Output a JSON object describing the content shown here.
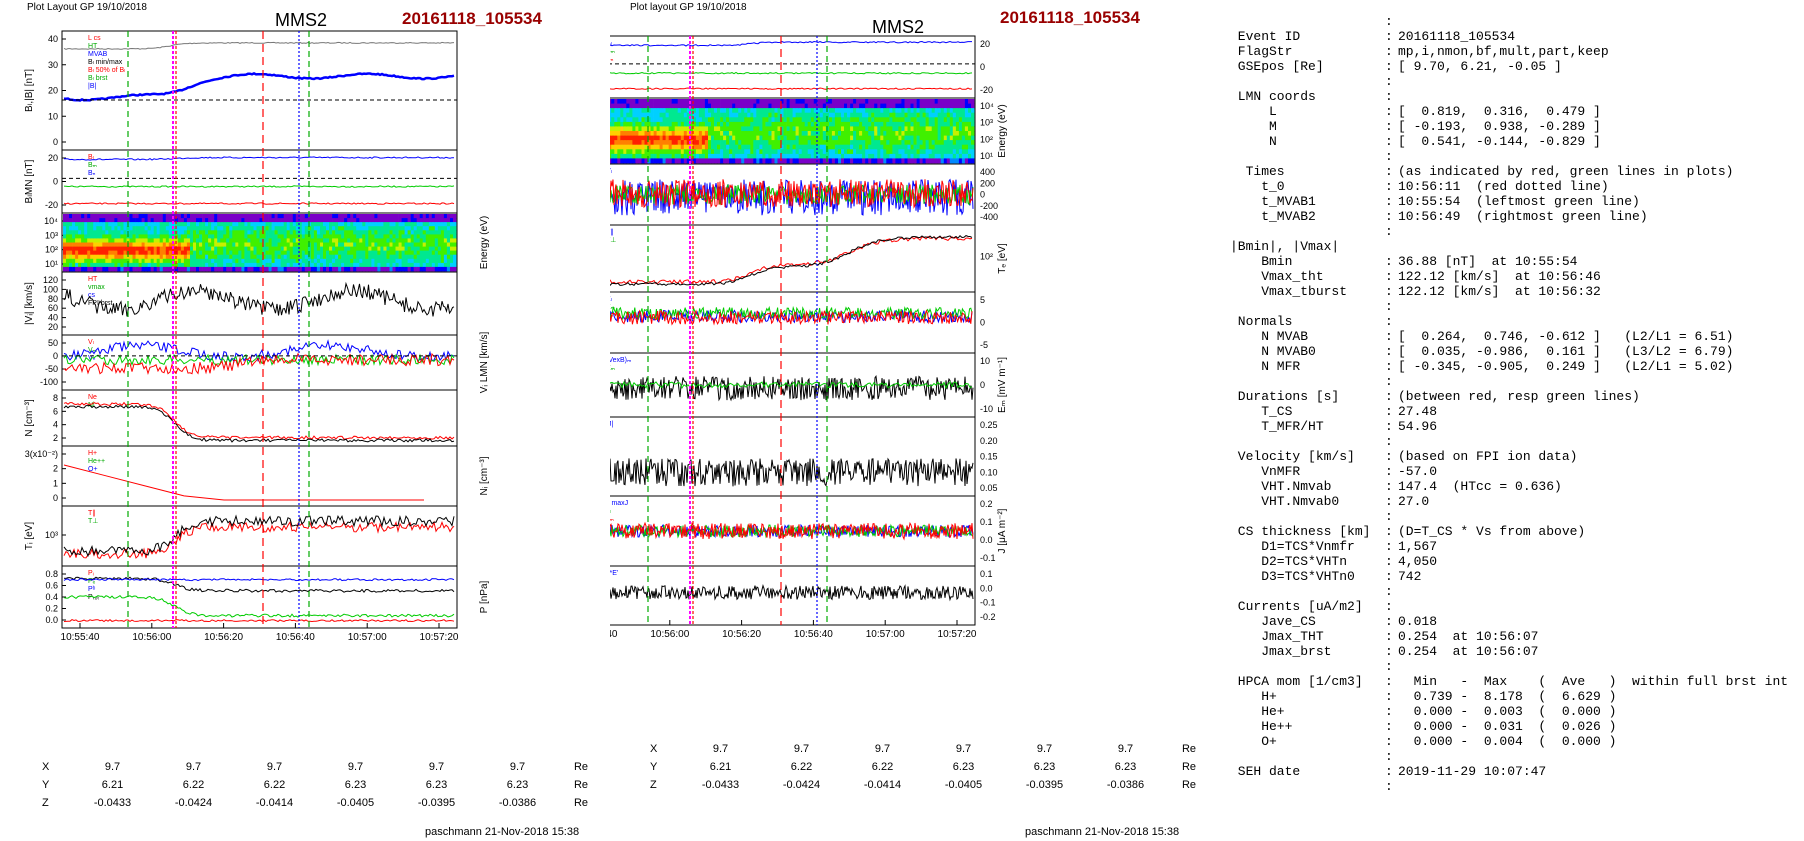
{
  "left_plot": {
    "header": "Plot Layout GP 19/10/2018",
    "spacecraft": "MMS2",
    "event": "20161118_105534",
    "footer": "paschmann 21-Nov-2018 15:38",
    "time_ticks": [
      "10:55:40",
      "10:56:00",
      "10:56:20",
      "10:56:40",
      "10:57:00",
      "10:57:20"
    ],
    "coords": [
      {
        "label": "X",
        "values": [
          "9.7",
          "9.7",
          "9.7",
          "9.7",
          "9.7",
          "9.7"
        ],
        "unit": "Re"
      },
      {
        "label": "Y",
        "values": [
          "6.21",
          "6.22",
          "6.22",
          "6.23",
          "6.23",
          "6.23"
        ],
        "unit": "Re"
      },
      {
        "label": "Z",
        "values": [
          "-0.0433",
          "-0.0424",
          "-0.0414",
          "-0.0405",
          "-0.0395",
          "-0.0386"
        ],
        "unit": "Re"
      }
    ],
    "panels": [
      {
        "ylabel": "Bₗ,|B| [nT]",
        "ticks": [
          "40",
          "30",
          "20",
          "10",
          "0"
        ],
        "legend": [
          "L cs",
          "HT",
          "MVAB",
          "Bₗ min/max",
          "Bₗ 50% of Bₗ",
          "Bₗ brst",
          "|B|"
        ]
      },
      {
        "ylabel": "BₗMN [nT]",
        "ticks": [
          "20",
          "0",
          "-20"
        ],
        "legend": [
          "Bₗ",
          "Bₘ",
          "Bₙ"
        ]
      },
      {
        "ylabel": "Energy (eV)",
        "ticks": [
          "10⁴",
          "10³",
          "10²",
          "10¹"
        ],
        "legend": []
      },
      {
        "ylabel": "|Vᵢ| [km/s]",
        "ticks": [
          "120",
          "100",
          "80",
          "60",
          "40",
          "20"
        ],
        "legend": [
          "HT",
          "vmax",
          "cs",
          "FPI brst"
        ]
      },
      {
        "ylabel": "Vᵢ LMN [km/s]",
        "ticks": [
          "50",
          "0",
          "-50",
          "-100"
        ],
        "legend": [
          "Vₗ",
          "Vₘ",
          "Vₙ"
        ]
      },
      {
        "ylabel": "N [cm⁻³]",
        "ticks": [
          "8",
          "6",
          "4",
          "2"
        ],
        "legend": [
          "Ne",
          "Ni"
        ]
      },
      {
        "ylabel": "Nᵢ [cm⁻³]",
        "ticks": [
          "3(x10⁻²)",
          "2",
          "1",
          "0"
        ],
        "legend": [
          "H+",
          "He++",
          "O+"
        ]
      },
      {
        "ylabel": "Tᵢ [eV]",
        "ticks": [
          "10³"
        ],
        "legend": [
          "T∥",
          "T⊥"
        ]
      },
      {
        "ylabel": "P [nPa]",
        "ticks": [
          "0.8",
          "0.6",
          "0.4",
          "0.2",
          "0.0"
        ],
        "legend": [
          "Pᵢ",
          "Pₑ",
          "Pᵇ",
          "Pₜₒₜ"
        ]
      }
    ]
  },
  "right_plot": {
    "header": "Plot layout GP 19/10/2018",
    "spacecraft": "MMS2",
    "event": "20161118_105534",
    "footer": "paschmann 21-Nov-2018 15:38",
    "time_ticks": [
      "10:55:40",
      "10:56:00",
      "10:56:20",
      "10:56:40",
      "10:57:00",
      "10:57:20"
    ],
    "coords": [
      {
        "label": "X",
        "values": [
          "9.7",
          "9.7",
          "9.7",
          "9.7",
          "9.7",
          "9.7"
        ],
        "unit": "Re"
      },
      {
        "label": "Y",
        "values": [
          "6.21",
          "6.22",
          "6.22",
          "6.23",
          "6.23",
          "6.23"
        ],
        "unit": "Re"
      },
      {
        "label": "Z",
        "values": [
          "-0.0433",
          "-0.0424",
          "-0.0414",
          "-0.0405",
          "-0.0395",
          "-0.0386"
        ],
        "unit": "Re"
      }
    ],
    "panels": [
      {
        "ylabel": "BₗMN [nT]",
        "ticks": [
          "20",
          "0",
          "-20"
        ],
        "legend": [
          "Bₗ",
          "Bₘ",
          "Bₙ"
        ]
      },
      {
        "ylabel": "Energy (eV)",
        "ticks": [
          "10⁴",
          "10³",
          "10²",
          "10¹"
        ],
        "legend": []
      },
      {
        "ylabel": "Vₑ LMN [km/s]",
        "ticks": [
          "400",
          "200",
          "0",
          "-200",
          "-400"
        ],
        "legend": [
          "Vₗ"
        ]
      },
      {
        "ylabel": "Tₑ [eV]",
        "ticks": [
          "10²"
        ],
        "legend": [
          "T∥",
          "T⊥"
        ]
      },
      {
        "ylabel": "EₗMN [mV m⁻¹]",
        "ticks": [
          "5",
          "0",
          "-5"
        ],
        "legend": [
          "Eₗ",
          "Eₘ",
          "Eₙ"
        ]
      },
      {
        "ylabel": "Eₘ [mV m⁻¹]",
        "ticks": [
          "10",
          "0",
          "-10"
        ],
        "legend": [
          "(VexB)ₘ",
          "Eₘ"
        ]
      },
      {
        "ylabel": "|J| [μA m⁻²]",
        "ticks": [
          "0.25",
          "0.20",
          "0.15",
          "0.10",
          "0.05"
        ],
        "legend": [
          "|J|"
        ]
      },
      {
        "ylabel": "J [μA m⁻²]",
        "ticks": [
          "0.2",
          "0.1",
          "0.0",
          "-0.1"
        ],
        "legend": [
          "J maxJ",
          "Jₗ",
          "Jₘ"
        ]
      },
      {
        "ylabel": "J*E' [nW m⁻³]",
        "ticks": [
          "0.1",
          "0.0",
          "-0.1",
          "-0.2"
        ],
        "legend": [
          "J*E'"
        ]
      }
    ]
  },
  "info_lines": [
    {
      "k": "",
      "c": ":",
      "v": ""
    },
    {
      "k": " Event ID",
      "c": ":",
      "v": "20161118_105534"
    },
    {
      "k": " FlagStr",
      "c": ":",
      "v": "mp,i,nmon,bf,mult,part,keep"
    },
    {
      "k": " GSEpos [Re]",
      "c": ":",
      "v": "[ 9.70, 6.21, -0.05 ]"
    },
    {
      "k": "",
      "c": ":",
      "v": ""
    },
    {
      "k": " LMN coords",
      "c": ":",
      "v": ""
    },
    {
      "k": "     L",
      "c": ":",
      "v": "[  0.819,  0.316,  0.479 ]"
    },
    {
      "k": "     M",
      "c": ":",
      "v": "[ -0.193,  0.938, -0.289 ]"
    },
    {
      "k": "     N",
      "c": ":",
      "v": "[  0.541, -0.144, -0.829 ]"
    },
    {
      "k": "",
      "c": ":",
      "v": ""
    },
    {
      "k": "  Times",
      "c": ":",
      "v": "(as indicated by red, green lines in plots)"
    },
    {
      "k": "    t_0",
      "c": ":",
      "v": "10:56:11  (red dotted line)"
    },
    {
      "k": "    t_MVAB1",
      "c": ":",
      "v": "10:55:54  (leftmost green line)"
    },
    {
      "k": "    t_MVAB2",
      "c": ":",
      "v": "10:56:49  (rightmost green line)"
    },
    {
      "k": "",
      "c": ":",
      "v": ""
    },
    {
      "k": "|Bmin|, |Vmax|",
      "c": "",
      "v": ""
    },
    {
      "k": "    Bmin",
      "c": ":",
      "v": "36.88 [nT]  at 10:55:54"
    },
    {
      "k": "    Vmax_tht",
      "c": ":",
      "v": "122.12 [km/s]  at 10:56:46"
    },
    {
      "k": "    Vmax_tburst",
      "c": ":",
      "v": "122.12 [km/s]  at 10:56:32"
    },
    {
      "k": "",
      "c": ":",
      "v": ""
    },
    {
      "k": " Normals",
      "c": ":",
      "v": ""
    },
    {
      "k": "    N MVAB",
      "c": ":",
      "v": "[  0.264,  0.746, -0.612 ]   (L2/L1 = 6.51)"
    },
    {
      "k": "    N MVAB0",
      "c": ":",
      "v": "[  0.035, -0.986,  0.161 ]   (L3/L2 = 6.79)"
    },
    {
      "k": "    N MFR",
      "c": ":",
      "v": "[ -0.345, -0.905,  0.249 ]   (L2/L1 = 5.02)"
    },
    {
      "k": "",
      "c": ":",
      "v": ""
    },
    {
      "k": " Durations [s]",
      "c": ":",
      "v": "(between red, resp green lines)"
    },
    {
      "k": "    T_CS",
      "c": ":",
      "v": "27.48"
    },
    {
      "k": "    T_MFR/HT",
      "c": ":",
      "v": "54.96"
    },
    {
      "k": "",
      "c": ":",
      "v": ""
    },
    {
      "k": " Velocity [km/s]",
      "c": ":",
      "v": "(based on FPI ion data)"
    },
    {
      "k": "    VnMFR",
      "c": ":",
      "v": "-57.0"
    },
    {
      "k": "    VHT.Nmvab",
      "c": ":",
      "v": "147.4  (HTcc = 0.636)"
    },
    {
      "k": "    VHT.Nmvab0",
      "c": ":",
      "v": "27.0"
    },
    {
      "k": "",
      "c": ":",
      "v": ""
    },
    {
      "k": " CS thickness [km]",
      "c": ":",
      "v": "(D=T_CS * Vs from above)"
    },
    {
      "k": "    D1=TCS*Vnmfr",
      "c": ":",
      "v": "1,567"
    },
    {
      "k": "    D2=TCS*VHTn",
      "c": ":",
      "v": "4,050"
    },
    {
      "k": "    D3=TCS*VHTn0",
      "c": ":",
      "v": "742"
    },
    {
      "k": "",
      "c": ":",
      "v": ""
    },
    {
      "k": " Currents [uA/m2]",
      "c": ":",
      "v": ""
    },
    {
      "k": "    Jave_CS",
      "c": ":",
      "v": "0.018"
    },
    {
      "k": "    Jmax_THT",
      "c": ":",
      "v": "0.254  at 10:56:07"
    },
    {
      "k": "    Jmax_brst",
      "c": ":",
      "v": "0.254  at 10:56:07"
    },
    {
      "k": "",
      "c": ":",
      "v": ""
    },
    {
      "k": " HPCA mom [1/cm3]",
      "c": ":",
      "v": "  Min   -  Max    (  Ave   )  within full brst int"
    },
    {
      "k": "    H+",
      "c": ":",
      "v": "  0.739 -  8.178  (  6.629 )"
    },
    {
      "k": "    He+",
      "c": ":",
      "v": "  0.000 -  0.003  (  0.000 )"
    },
    {
      "k": "    He++",
      "c": ":",
      "v": "  0.000 -  0.031  (  0.026 )"
    },
    {
      "k": "    O+",
      "c": ":",
      "v": "  0.000 -  0.004  (  0.000 )"
    },
    {
      "k": "",
      "c": ":",
      "v": ""
    },
    {
      "k": " SEH date",
      "c": ":",
      "v": "2019-11-29 10:07:47"
    },
    {
      "k": "",
      "c": ":",
      "v": ""
    }
  ],
  "chart_data": [
    {
      "type": "line",
      "title": "MMS2 20161118_105534",
      "x_ticks": [
        "10:55:40",
        "10:56:00",
        "10:56:20",
        "10:56:40",
        "10:57:00",
        "10:57:20"
      ],
      "panels": [
        "Bₗ,|B| [nT]",
        "BₗMN [nT]",
        "Energy (eV)",
        "|Vᵢ| [km/s]",
        "Vᵢ LMN [km/s]",
        "N [cm⁻³]",
        "Nᵢ [cm⁻³]",
        "Tᵢ [eV]",
        "P [nPa]"
      ],
      "series": [
        {
          "name": "|B|",
          "x_sec": [
            0,
            20,
            40,
            60,
            80,
            100,
            120,
            140,
            160,
            180
          ],
          "values": [
            36,
            36,
            35,
            40,
            41,
            41,
            40,
            40,
            40,
            41
          ]
        },
        {
          "name": "Bₗ brst",
          "x_sec": [
            0,
            20,
            30,
            40,
            50,
            60,
            80,
            100,
            120,
            140,
            160,
            180
          ],
          "values": [
            20,
            19,
            18,
            19,
            24,
            26,
            26,
            27,
            26,
            26,
            27,
            28
          ]
        }
      ],
      "colors": {
        "B_L": "#0000ff",
        "B_M": "#00cc00",
        "B_N": "#ff0000",
        "marker_red": "#ff0000",
        "marker_green": "#00aa00",
        "marker_magenta": "#ff00ff",
        "marker_blue": "#0000ff"
      }
    },
    {
      "type": "line",
      "title": "MMS2 20161118_105534",
      "x_ticks": [
        "10:55:40",
        "10:56:00",
        "10:56:20",
        "10:56:40",
        "10:57:00",
        "10:57:20"
      ],
      "panels": [
        "BₗMN [nT]",
        "Energy (eV)",
        "Vₑ LMN [km/s]",
        "Tₑ [eV]",
        "EₗMN [mV m⁻¹]",
        "Eₘ [mV m⁻¹]",
        "|J| [μA m⁻²]",
        "J [μA m⁻²]",
        "J*E' [nW m⁻³]"
      ]
    }
  ]
}
